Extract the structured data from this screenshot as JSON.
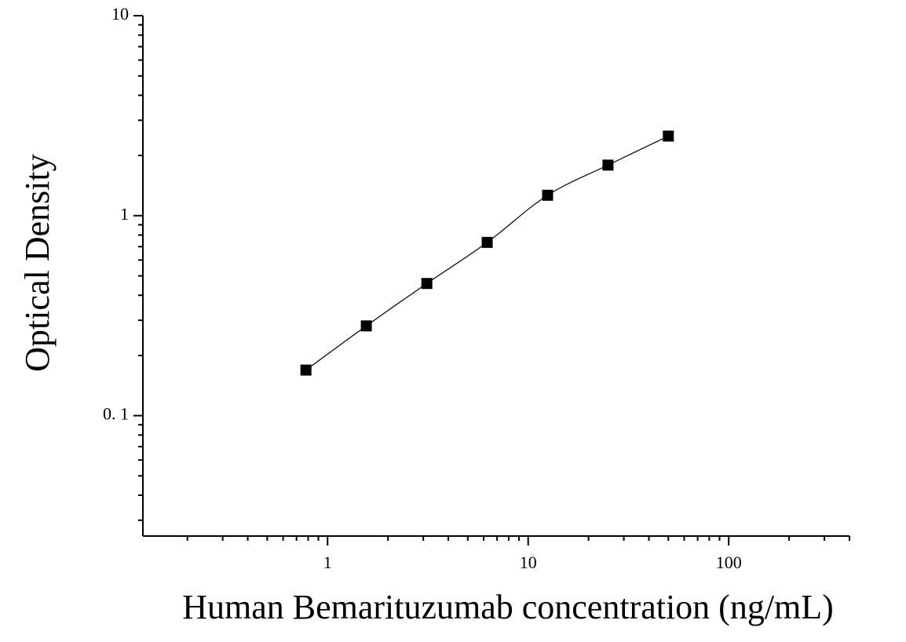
{
  "chart_data": {
    "type": "scatter",
    "xlabel": "Human Bemarituzumab concentration (ng/mL)",
    "ylabel": "Optical Density",
    "x": [
      0.78,
      1.56,
      3.125,
      6.25,
      12.5,
      25,
      50
    ],
    "series": [
      {
        "color": "#000000",
        "values": [
          0.169,
          0.281,
          0.458,
          0.735,
          1.265,
          1.79,
          2.5
        ]
      }
    ],
    "xscale": "log",
    "yscale": "log",
    "xlim": [
      0.12,
      400
    ],
    "ylim": [
      0.025,
      10
    ],
    "xticks": [
      1,
      10,
      100
    ],
    "yticks": [
      {
        "value": 0.1,
        "label": "0. 1"
      },
      1,
      10
    ],
    "grid": false
  }
}
